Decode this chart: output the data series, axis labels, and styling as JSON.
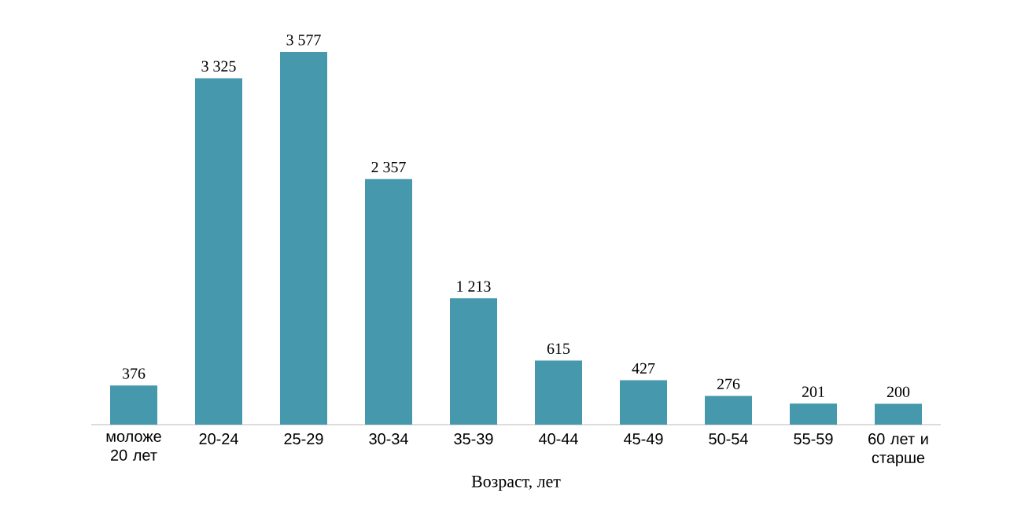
{
  "chart_data": {
    "type": "bar",
    "xlabel": "Возраст, лет",
    "categories": [
      "моложе 20 лет",
      "20-24",
      "25-29",
      "30-34",
      "35-39",
      "40-44",
      "45-49",
      "50-54",
      "55-59",
      "60 лет и старше"
    ],
    "values": [
      376,
      3325,
      3577,
      2357,
      1213,
      615,
      427,
      276,
      201,
      200
    ],
    "value_labels": [
      "376",
      "3 325",
      "3 577",
      "2 357",
      "1 213",
      "615",
      "427",
      "276",
      "201",
      "200"
    ],
    "color": "#4698ad"
  }
}
